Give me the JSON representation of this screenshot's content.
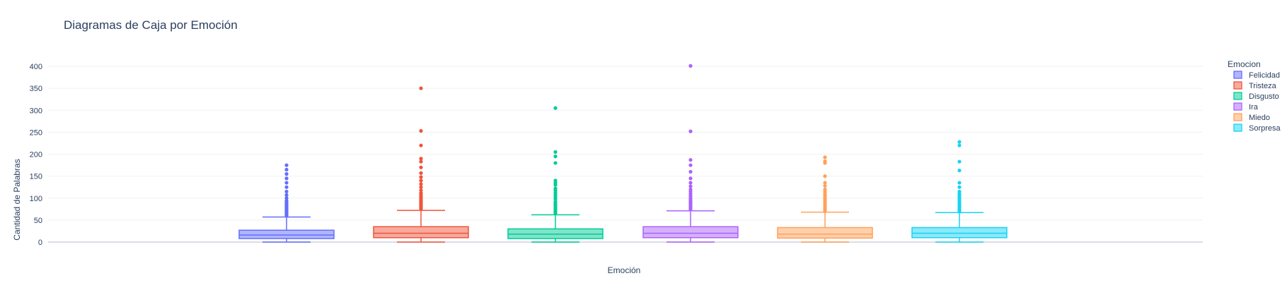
{
  "chart_data": {
    "type": "box",
    "title": "Diagramas de Caja por Emoción",
    "xlabel": "Emoción",
    "ylabel": "Cantidad de Palabras",
    "ylim": [
      0,
      400
    ],
    "yticks": [
      0,
      50,
      100,
      150,
      200,
      250,
      300,
      350,
      400
    ],
    "grid": true,
    "legend": {
      "title": "Emocion",
      "position": "right"
    },
    "series": [
      {
        "name": "Felicidad",
        "color": "#636efa",
        "min": 0,
        "q1": 8,
        "median": 16,
        "q3": 27,
        "upper_fence": 57,
        "outliers": [
          60,
          62,
          64,
          66,
          68,
          70,
          72,
          74,
          76,
          78,
          80,
          82,
          85,
          88,
          91,
          94,
          100,
          107,
          115,
          125,
          135,
          145,
          155,
          165,
          175
        ]
      },
      {
        "name": "Tristeza",
        "color": "#ef553b",
        "min": 0,
        "q1": 10,
        "median": 20,
        "q3": 35,
        "upper_fence": 72,
        "outliers": [
          75,
          78,
          80,
          82,
          85,
          88,
          90,
          93,
          96,
          100,
          104,
          108,
          112,
          118,
          125,
          132,
          140,
          148,
          157,
          170,
          183,
          190,
          220,
          253,
          350
        ]
      },
      {
        "name": "Disgusto",
        "color": "#00cc96",
        "min": 0,
        "q1": 8,
        "median": 18,
        "q3": 30,
        "upper_fence": 62,
        "outliers": [
          65,
          68,
          70,
          73,
          76,
          80,
          84,
          88,
          92,
          98,
          103,
          108,
          113,
          118,
          122,
          130,
          135,
          140,
          180,
          195,
          205,
          305
        ]
      },
      {
        "name": "Ira",
        "color": "#ab63fa",
        "min": 0,
        "q1": 10,
        "median": 20,
        "q3": 35,
        "upper_fence": 71,
        "outliers": [
          74,
          77,
          80,
          83,
          86,
          89,
          92,
          96,
          100,
          105,
          110,
          115,
          120,
          127,
          135,
          145,
          160,
          175,
          187,
          252,
          401
        ]
      },
      {
        "name": "Miedo",
        "color": "#ffa15a",
        "min": 0,
        "q1": 9,
        "median": 18,
        "q3": 33,
        "upper_fence": 68,
        "outliers": [
          70,
          73,
          76,
          80,
          83,
          86,
          90,
          94,
          98,
          102,
          106,
          110,
          115,
          120,
          128,
          135,
          150,
          180,
          184,
          193
        ]
      },
      {
        "name": "Sorpresa",
        "color": "#19d3f3",
        "min": 0,
        "q1": 10,
        "median": 20,
        "q3": 33,
        "upper_fence": 67,
        "outliers": [
          70,
          72,
          75,
          78,
          80,
          83,
          86,
          90,
          94,
          98,
          102,
          106,
          110,
          115,
          125,
          135,
          163,
          183,
          220,
          228
        ]
      }
    ]
  }
}
